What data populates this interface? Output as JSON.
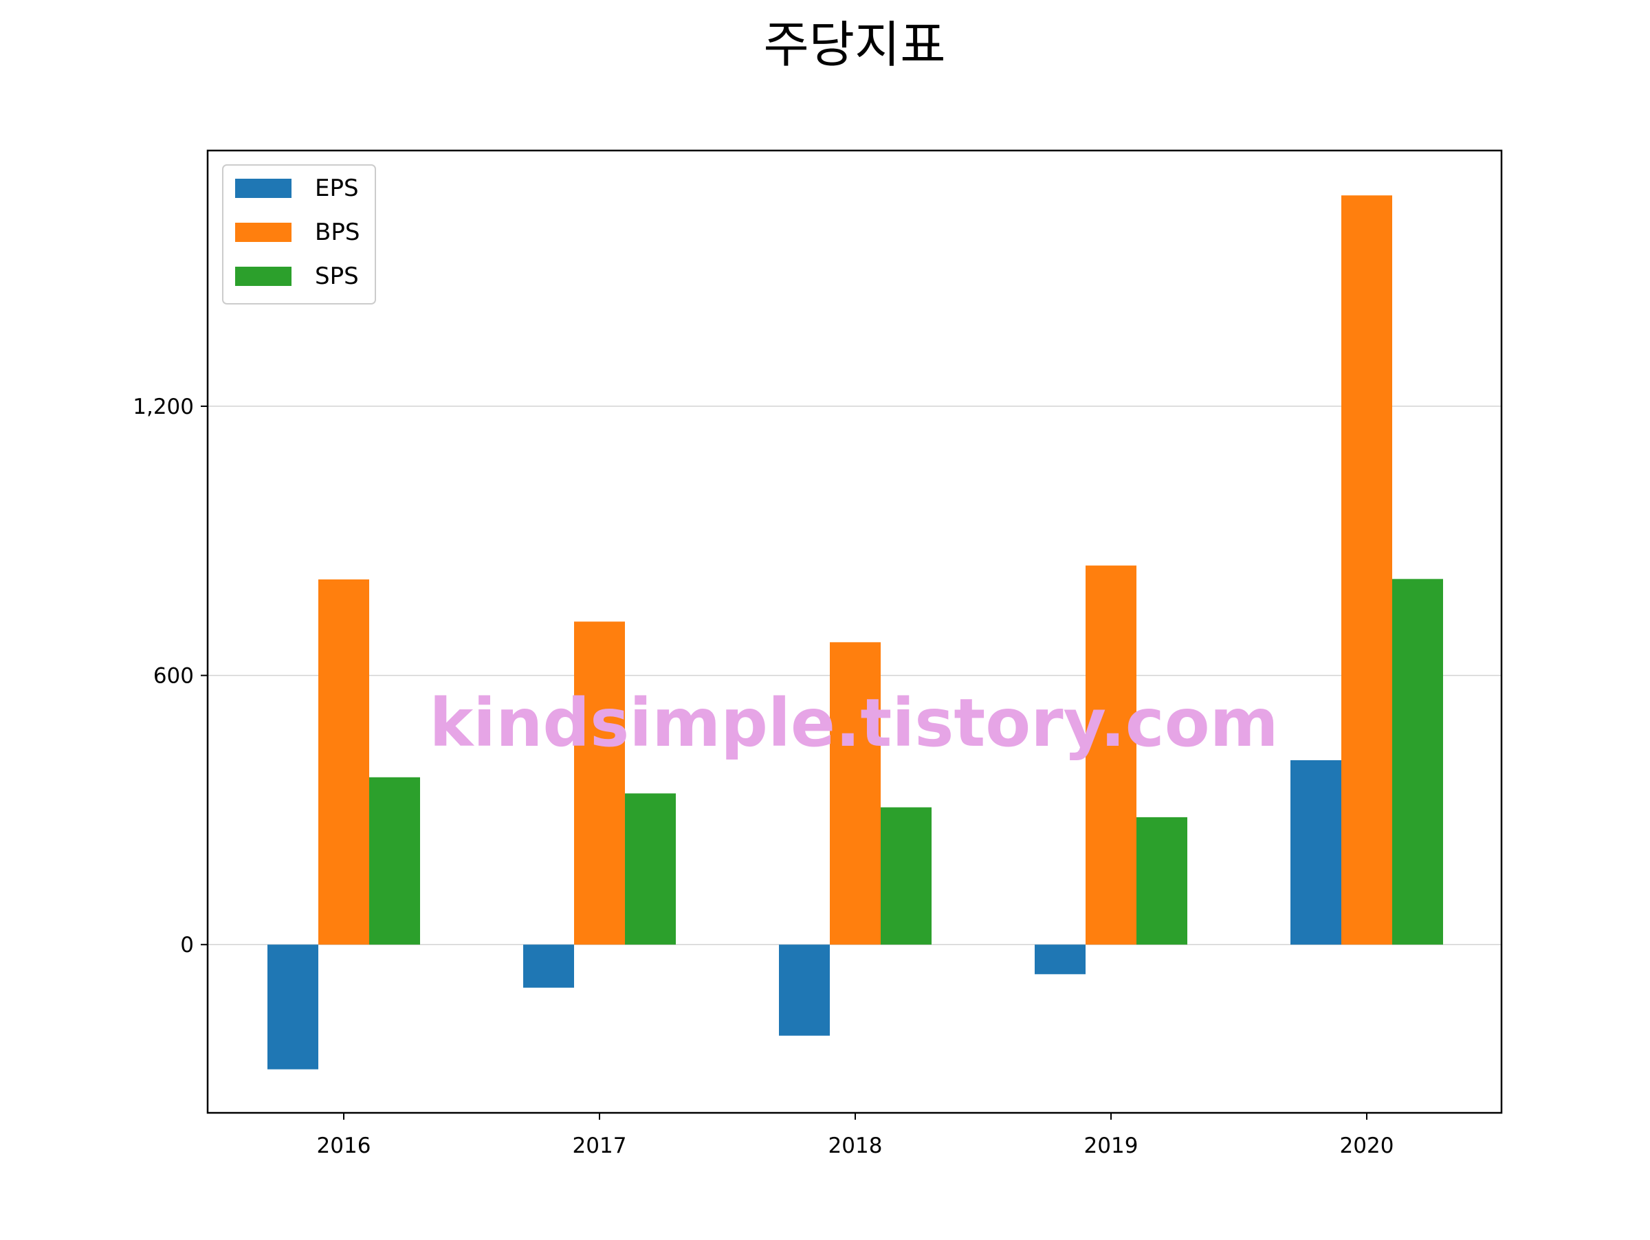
{
  "chart_data": {
    "type": "bar",
    "title": "주당지표",
    "categories": [
      "2016",
      "2017",
      "2018",
      "2019",
      "2020"
    ],
    "series": [
      {
        "name": "EPS",
        "color": "#1f77b4",
        "values": [
          -278,
          -96,
          -203,
          -66,
          411
        ]
      },
      {
        "name": "BPS",
        "color": "#ff7f0e",
        "values": [
          814,
          720,
          674,
          845,
          1670
        ]
      },
      {
        "name": "SPS",
        "color": "#2ca02c",
        "values": [
          373,
          337,
          306,
          284,
          815
        ]
      }
    ],
    "yticks": [
      0,
      600,
      1200
    ],
    "ytick_labels": [
      "0",
      "600",
      "1,200"
    ],
    "ylim": [
      -375,
      1770
    ],
    "grid": "horizontal",
    "legend_position": "upper-left",
    "xlabel": "",
    "ylabel": ""
  },
  "watermark": "kindsimple.tistory.com",
  "colors": {
    "watermark": "#e6a5e6",
    "grid": "#d3d3d3",
    "axes": "#000000"
  }
}
